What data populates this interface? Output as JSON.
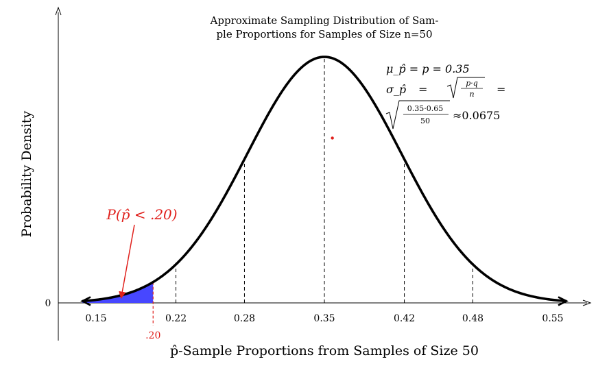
{
  "chart_data": {
    "type": "area",
    "title_line1": "Approximate Sampling Distribution of Sam-",
    "title_line2": "ple Proportions for Samples of Size n=50",
    "xlabel": "p̂-Sample Proportions from Samples of Size 50",
    "ylabel": "Probability Density",
    "y_zero_label": "0",
    "mean": 0.35,
    "sd": 0.0675,
    "xlim": [
      0.135,
      0.565
    ],
    "x_ticks": [
      {
        "value": 0.15,
        "label": "0.15"
      },
      {
        "value": 0.22,
        "label": "0.22"
      },
      {
        "value": 0.28,
        "label": "0.28"
      },
      {
        "value": 0.35,
        "label": "0.35"
      },
      {
        "value": 0.42,
        "label": "0.42"
      },
      {
        "value": 0.48,
        "label": "0.48"
      },
      {
        "value": 0.55,
        "label": "0.55"
      }
    ],
    "dashed_lines_at": [
      0.22,
      0.28,
      0.35,
      0.42,
      0.48
    ],
    "shaded_region": {
      "from": 0.15,
      "to": 0.2,
      "color": "#4747ff"
    },
    "cutoff": {
      "value": 0.2,
      "label": ".20",
      "color": "#e0201c"
    },
    "annotation": {
      "text": "P(p̂ < .20)",
      "color": "#e0201c"
    },
    "red_dot": {
      "x": 0.357,
      "y_fraction_of_peak": 0.67
    },
    "formula": {
      "mu_line": "μ_p̂ = p = 0.35",
      "sigma_prefix": "σ_p̂",
      "eq": "=",
      "frac_num": "p·q",
      "frac_den": "n",
      "num2": "0.35·0.65",
      "den2": "50",
      "approx": "≈0.0675"
    }
  }
}
